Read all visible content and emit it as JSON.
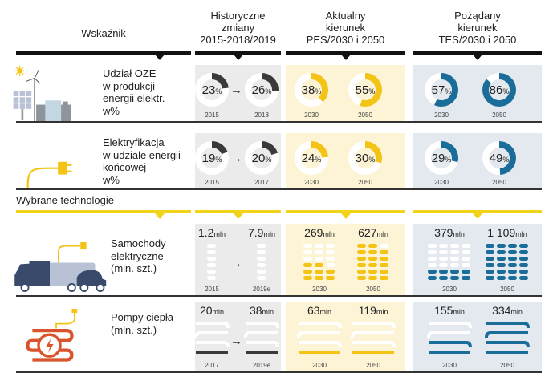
{
  "header": {
    "indicator": "Wskaźnik",
    "historical": [
      "Historyczne",
      "zmiany",
      "2015-2018/2019"
    ],
    "current": [
      "Aktualny",
      "kierunek",
      "PES/2030 i 2050"
    ],
    "desired": [
      "Pożądany",
      "kierunek",
      "TES/2030 i 2050"
    ]
  },
  "colors": {
    "historical": "#3a3a3a",
    "current": "#f3c316",
    "desired": "#1b6d99",
    "hist_bg": "#ebebeb",
    "cur_bg": "#fdf4d6",
    "des_bg": "#e4e9f0",
    "yellow_bar": "#f3d21a",
    "heat_icon": "#d9542c"
  },
  "section_label": "Wybrane technologie",
  "rows": [
    {
      "label": [
        "Udział OZE",
        "w produkcji",
        "energii elektr.",
        "w%"
      ],
      "icon": "renewables-icon",
      "hist": [
        {
          "value": "23",
          "unit": "%",
          "year": "2015",
          "fraction": 0.23
        },
        {
          "value": "26",
          "unit": "%",
          "year": "2018",
          "fraction": 0.26
        }
      ],
      "cur": [
        {
          "value": "38",
          "unit": "%",
          "year": "2030",
          "fraction": 0.38
        },
        {
          "value": "55",
          "unit": "%",
          "year": "2050",
          "fraction": 0.55
        }
      ],
      "des": [
        {
          "value": "57",
          "unit": "%",
          "year": "2030",
          "fraction": 0.57
        },
        {
          "value": "86",
          "unit": "%",
          "year": "2050",
          "fraction": 0.86
        }
      ]
    },
    {
      "label": [
        "Elektryfikacja",
        "w udziale energii",
        "końcowej",
        "w%"
      ],
      "icon": "plug-icon",
      "hist": [
        {
          "value": "19",
          "unit": "%",
          "year": "2015",
          "fraction": 0.19
        },
        {
          "value": "20",
          "unit": "%",
          "year": "2017",
          "fraction": 0.2
        }
      ],
      "cur": [
        {
          "value": "24",
          "unit": "%",
          "year": "2030",
          "fraction": 0.24
        },
        {
          "value": "30",
          "unit": "%",
          "year": "2050",
          "fraction": 0.3
        }
      ],
      "des": [
        {
          "value": "29",
          "unit": "%",
          "year": "2030",
          "fraction": 0.29
        },
        {
          "value": "49",
          "unit": "%",
          "year": "2050",
          "fraction": 0.49
        }
      ]
    },
    {
      "label": [
        "Samochody",
        "elektryczne",
        "(mln. szt.)"
      ],
      "icon": "electric-vehicles-icon",
      "hist": [
        {
          "value": "1.2",
          "unit": "mln",
          "year": "2015",
          "fill": 0.02
        },
        {
          "value": "7.9",
          "unit": "mln",
          "year": "2019e",
          "fill": 0.05
        }
      ],
      "cur": [
        {
          "value": "269",
          "unit": "mln",
          "year": "2030",
          "fill": 0.45
        },
        {
          "value": "627",
          "unit": "mln",
          "year": "2050",
          "fill": 0.95
        }
      ],
      "des": [
        {
          "value": "379",
          "unit": "mln",
          "year": "2030",
          "fill": 0.33
        },
        {
          "value": "1 109",
          "unit": "mln",
          "year": "2050",
          "fill": 1.0
        }
      ]
    },
    {
      "label": [
        "Pompy ciepła",
        "(mln. szt.)"
      ],
      "icon": "heat-pump-icon",
      "hist": [
        {
          "value": "20",
          "unit": "mln",
          "year": "2017",
          "fill": 0.1
        },
        {
          "value": "38",
          "unit": "mln",
          "year": "2019e",
          "fill": 0.2
        }
      ],
      "cur": [
        {
          "value": "63",
          "unit": "mln",
          "year": "2030",
          "fill": 0.2
        },
        {
          "value": "119",
          "unit": "mln",
          "year": "2050",
          "fill": 0.35
        }
      ],
      "des": [
        {
          "value": "155",
          "unit": "mln",
          "year": "2030",
          "fill": 0.45
        },
        {
          "value": "334",
          "unit": "mln",
          "year": "2050",
          "fill": 1.0
        }
      ]
    }
  ]
}
